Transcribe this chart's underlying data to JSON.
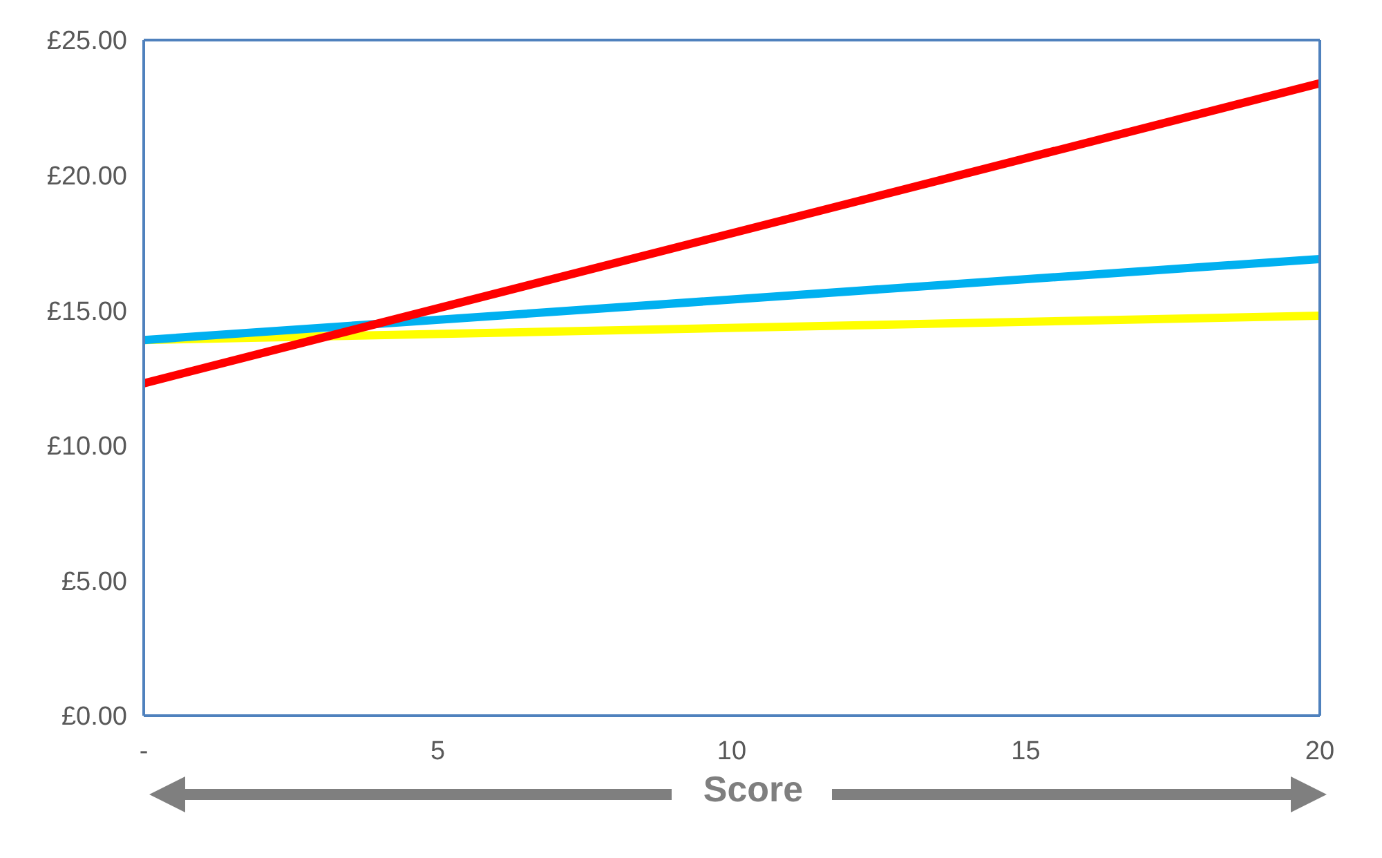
{
  "chart_data": {
    "type": "line",
    "xlabel": "Score",
    "x": [
      0,
      20
    ],
    "series": [
      {
        "color": "#ffff00",
        "values": [
          13.9,
          14.8
        ]
      },
      {
        "color": "#00b0f0",
        "values": [
          13.9,
          16.9
        ]
      },
      {
        "color": "#ff0000",
        "values": [
          12.3,
          23.4
        ]
      }
    ],
    "xlim": [
      0,
      20
    ],
    "xticks": [
      {
        "value": 0,
        "label": "-"
      },
      5,
      10,
      15,
      20
    ],
    "ylim": [
      0,
      25
    ],
    "yticks": [
      {
        "value": 0,
        "label": "£0.00"
      },
      {
        "value": 5,
        "label": "£5.00"
      },
      {
        "value": 10,
        "label": "£10.00"
      },
      {
        "value": 15,
        "label": "£15.00"
      },
      {
        "value": 20,
        "label": "£20.00"
      },
      {
        "value": 25,
        "label": "£25.00"
      }
    ],
    "legend": false,
    "marker": "none",
    "line_style": "solid"
  }
}
